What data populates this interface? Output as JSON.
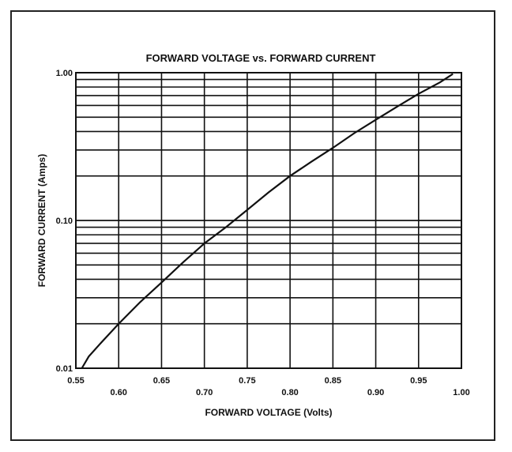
{
  "chart_data": {
    "type": "line",
    "title": "FORWARD VOLTAGE vs. FORWARD CURRENT",
    "xlabel": "FORWARD VOLTAGE (Volts)",
    "ylabel": "FORWARD CURRENT (Amps)",
    "xlim": [
      0.55,
      1.0
    ],
    "ylim": [
      0.01,
      1.0
    ],
    "yscale": "log",
    "grid": true,
    "x_ticks": [
      "0.55",
      "0.60",
      "0.65",
      "0.70",
      "0.75",
      "0.80",
      "0.85",
      "0.90",
      "0.95",
      "1.00"
    ],
    "y_ticks": [
      "0.01",
      "0.10",
      "1.00"
    ],
    "series": [
      {
        "x": [
          0.557,
          0.565,
          0.58,
          0.6,
          0.625,
          0.65,
          0.675,
          0.7,
          0.725,
          0.75,
          0.775,
          0.8,
          0.825,
          0.85,
          0.875,
          0.9,
          0.925,
          0.95,
          0.975,
          0.99
        ],
        "y": [
          0.01,
          0.012,
          0.015,
          0.02,
          0.028,
          0.038,
          0.052,
          0.07,
          0.09,
          0.118,
          0.155,
          0.2,
          0.25,
          0.31,
          0.39,
          0.48,
          0.59,
          0.72,
          0.86,
          0.98
        ]
      }
    ]
  }
}
